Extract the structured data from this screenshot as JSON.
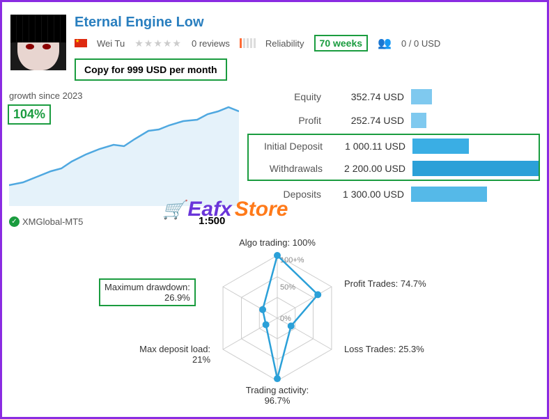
{
  "header": {
    "title": "Eternal Engine Low",
    "author": "Wei Tu",
    "reviews_text": "0 reviews",
    "reliability_label": "Reliability",
    "reliability_bars_on": 1,
    "reliability_bars_total": 5,
    "weeks": "70 weeks",
    "investors": "0 / 0 USD",
    "copy_button": "Copy for 999 USD per month"
  },
  "growth": {
    "label": "growth since 2023",
    "value": "104%",
    "line_color": "#4fa8e0",
    "area_color": "rgba(79,168,224,0.15)",
    "points": [
      [
        0,
        130
      ],
      [
        20,
        126
      ],
      [
        40,
        118
      ],
      [
        60,
        110
      ],
      [
        75,
        106
      ],
      [
        90,
        96
      ],
      [
        110,
        86
      ],
      [
        130,
        78
      ],
      [
        150,
        72
      ],
      [
        165,
        74
      ],
      [
        180,
        64
      ],
      [
        200,
        52
      ],
      [
        215,
        50
      ],
      [
        230,
        44
      ],
      [
        250,
        38
      ],
      [
        270,
        36
      ],
      [
        285,
        28
      ],
      [
        300,
        24
      ],
      [
        315,
        18
      ],
      [
        330,
        24
      ]
    ]
  },
  "broker": "XMGlobal-MT5",
  "leverage": "1:500",
  "watermark": {
    "part1": "Eafx",
    "part2": "Store"
  },
  "stats": {
    "rows": [
      {
        "label": "Equity",
        "value": "352.74 USD",
        "bar_pct": 16,
        "color": "#7fc9ef",
        "highlight": false
      },
      {
        "label": "Profit",
        "value": "252.74 USD",
        "bar_pct": 12,
        "color": "#7fc9ef",
        "highlight": false
      },
      {
        "label": "Initial Deposit",
        "value": "1 000.11 USD",
        "bar_pct": 45,
        "color": "#3aaee4",
        "highlight": true
      },
      {
        "label": "Withdrawals",
        "value": "2 200.00 USD",
        "bar_pct": 100,
        "color": "#2ba0d8",
        "highlight": true
      },
      {
        "label": "Deposits",
        "value": "1 300.00 USD",
        "bar_pct": 59,
        "color": "#55b9e8",
        "highlight": false
      }
    ]
  },
  "radar": {
    "line_color": "#2ba0d8",
    "marker_color": "#2ba0d8",
    "grid_color": "#ccc",
    "ticks": [
      "100+%",
      "50%",
      "0%"
    ],
    "axes": [
      {
        "label": "Algo trading: 100%",
        "value": 1.0
      },
      {
        "label": "Profit Trades: 74.7%",
        "value": 0.747
      },
      {
        "label": "Loss Trades: 25.3%",
        "value": 0.253
      },
      {
        "label": "Trading activity: 96.7%",
        "value": 0.967
      },
      {
        "label": "Max deposit load: 21%",
        "value": 0.21
      },
      {
        "label": "Maximum drawdown: 26.9%",
        "value": 0.269,
        "highlight": true
      }
    ]
  },
  "colors": {
    "frame": "#8a2be2",
    "highlight_green": "#1a9c3f",
    "link_blue": "#2a7fbf"
  }
}
